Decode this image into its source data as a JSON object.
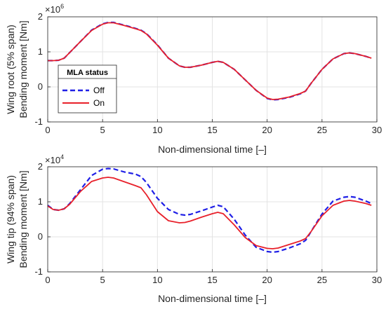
{
  "chart_data": [
    {
      "type": "line",
      "ylabel_lines": [
        "Wing root (5% span)",
        "Bending moment [Nm]"
      ],
      "xlabel": "Non-dimensional time [–]",
      "y_exponent_base": "×10",
      "y_exponent_power": "6",
      "xlim": [
        0,
        30
      ],
      "ylim": [
        -1,
        2
      ],
      "x_ticks": [
        0,
        5,
        10,
        15,
        20,
        25,
        30
      ],
      "y_ticks": [
        -1,
        0,
        1,
        2
      ],
      "grid": true,
      "legend": {
        "title": "MLA status",
        "placement": "middle-left"
      },
      "series": [
        {
          "name": "Off",
          "color": "#1f1fe6",
          "style": "dashed",
          "points": [
            [
              0,
              0.75
            ],
            [
              0.5,
              0.75
            ],
            [
              1,
              0.76
            ],
            [
              1.5,
              0.82
            ],
            [
              2,
              0.98
            ],
            [
              3,
              1.3
            ],
            [
              4,
              1.62
            ],
            [
              5,
              1.8
            ],
            [
              5.5,
              1.84
            ],
            [
              6,
              1.84
            ],
            [
              7,
              1.76
            ],
            [
              8,
              1.67
            ],
            [
              8.5,
              1.62
            ],
            [
              9,
              1.52
            ],
            [
              10,
              1.2
            ],
            [
              11,
              0.82
            ],
            [
              12,
              0.6
            ],
            [
              12.5,
              0.56
            ],
            [
              13,
              0.56
            ],
            [
              14,
              0.62
            ],
            [
              15,
              0.7
            ],
            [
              15.5,
              0.73
            ],
            [
              16,
              0.7
            ],
            [
              17,
              0.5
            ],
            [
              18,
              0.2
            ],
            [
              19,
              -0.1
            ],
            [
              20,
              -0.33
            ],
            [
              20.5,
              -0.37
            ],
            [
              21,
              -0.36
            ],
            [
              22,
              -0.3
            ],
            [
              23,
              -0.2
            ],
            [
              23.5,
              -0.12
            ],
            [
              24,
              0.1
            ],
            [
              25,
              0.5
            ],
            [
              26,
              0.8
            ],
            [
              27,
              0.95
            ],
            [
              27.5,
              0.97
            ],
            [
              28,
              0.95
            ],
            [
              29,
              0.87
            ],
            [
              29.5,
              0.82
            ]
          ]
        },
        {
          "name": "On",
          "color": "#e8202a",
          "style": "solid",
          "points": [
            [
              0,
              0.75
            ],
            [
              0.5,
              0.75
            ],
            [
              1,
              0.76
            ],
            [
              1.5,
              0.82
            ],
            [
              2,
              0.98
            ],
            [
              3,
              1.3
            ],
            [
              4,
              1.61
            ],
            [
              5,
              1.79
            ],
            [
              5.5,
              1.83
            ],
            [
              6,
              1.83
            ],
            [
              7,
              1.75
            ],
            [
              8,
              1.66
            ],
            [
              8.5,
              1.61
            ],
            [
              9,
              1.51
            ],
            [
              10,
              1.19
            ],
            [
              11,
              0.82
            ],
            [
              12,
              0.6
            ],
            [
              12.5,
              0.56
            ],
            [
              13,
              0.56
            ],
            [
              14,
              0.62
            ],
            [
              15,
              0.7
            ],
            [
              15.5,
              0.73
            ],
            [
              16,
              0.7
            ],
            [
              17,
              0.5
            ],
            [
              18,
              0.2
            ],
            [
              19,
              -0.1
            ],
            [
              20,
              -0.32
            ],
            [
              20.5,
              -0.36
            ],
            [
              21,
              -0.35
            ],
            [
              22,
              -0.29
            ],
            [
              23,
              -0.19
            ],
            [
              23.5,
              -0.12
            ],
            [
              24,
              0.1
            ],
            [
              25,
              0.5
            ],
            [
              26,
              0.8
            ],
            [
              27,
              0.95
            ],
            [
              27.5,
              0.97
            ],
            [
              28,
              0.95
            ],
            [
              29,
              0.87
            ],
            [
              29.5,
              0.82
            ]
          ]
        }
      ]
    },
    {
      "type": "line",
      "ylabel_lines": [
        "Wing tip (94% span)",
        "Bending moment [Nm]"
      ],
      "xlabel": "Non-dimensional time [–]",
      "y_exponent_base": "×10",
      "y_exponent_power": "4",
      "xlim": [
        0,
        30
      ],
      "ylim": [
        -1,
        2
      ],
      "x_ticks": [
        0,
        5,
        10,
        15,
        20,
        25,
        30
      ],
      "y_ticks": [
        -1,
        0,
        1,
        2
      ],
      "grid": true,
      "series": [
        {
          "name": "Off",
          "color": "#1f1fe6",
          "style": "dashed",
          "points": [
            [
              0,
              0.9
            ],
            [
              0.5,
              0.78
            ],
            [
              1,
              0.76
            ],
            [
              1.5,
              0.8
            ],
            [
              2,
              0.95
            ],
            [
              3,
              1.35
            ],
            [
              4,
              1.75
            ],
            [
              5,
              1.93
            ],
            [
              5.5,
              1.95
            ],
            [
              6,
              1.94
            ],
            [
              7,
              1.85
            ],
            [
              8,
              1.79
            ],
            [
              8.5,
              1.72
            ],
            [
              9,
              1.55
            ],
            [
              10,
              1.1
            ],
            [
              11,
              0.78
            ],
            [
              12,
              0.64
            ],
            [
              12.5,
              0.62
            ],
            [
              13,
              0.64
            ],
            [
              14,
              0.74
            ],
            [
              15,
              0.85
            ],
            [
              15.5,
              0.9
            ],
            [
              16,
              0.86
            ],
            [
              17,
              0.5
            ],
            [
              18,
              0.05
            ],
            [
              19,
              -0.3
            ],
            [
              20,
              -0.42
            ],
            [
              20.5,
              -0.44
            ],
            [
              21,
              -0.42
            ],
            [
              22,
              -0.32
            ],
            [
              23,
              -0.2
            ],
            [
              23.5,
              -0.1
            ],
            [
              24,
              0.15
            ],
            [
              25,
              0.65
            ],
            [
              26,
              1.02
            ],
            [
              27,
              1.13
            ],
            [
              27.5,
              1.15
            ],
            [
              28,
              1.13
            ],
            [
              29,
              1.02
            ],
            [
              29.5,
              0.95
            ]
          ]
        },
        {
          "name": "On",
          "color": "#e8202a",
          "style": "solid",
          "points": [
            [
              0,
              0.88
            ],
            [
              0.5,
              0.78
            ],
            [
              1,
              0.76
            ],
            [
              1.5,
              0.8
            ],
            [
              2,
              0.93
            ],
            [
              3,
              1.3
            ],
            [
              4,
              1.58
            ],
            [
              5,
              1.68
            ],
            [
              5.5,
              1.7
            ],
            [
              6,
              1.68
            ],
            [
              7,
              1.57
            ],
            [
              8,
              1.46
            ],
            [
              8.5,
              1.4
            ],
            [
              9,
              1.2
            ],
            [
              10,
              0.72
            ],
            [
              11,
              0.46
            ],
            [
              12,
              0.4
            ],
            [
              12.5,
              0.41
            ],
            [
              13,
              0.45
            ],
            [
              14,
              0.56
            ],
            [
              15,
              0.66
            ],
            [
              15.5,
              0.7
            ],
            [
              16,
              0.66
            ],
            [
              17,
              0.34
            ],
            [
              18,
              -0.02
            ],
            [
              19,
              -0.25
            ],
            [
              20,
              -0.33
            ],
            [
              20.5,
              -0.34
            ],
            [
              21,
              -0.32
            ],
            [
              22,
              -0.22
            ],
            [
              23,
              -0.12
            ],
            [
              23.5,
              -0.05
            ],
            [
              24,
              0.15
            ],
            [
              25,
              0.6
            ],
            [
              26,
              0.9
            ],
            [
              27,
              1.02
            ],
            [
              27.5,
              1.04
            ],
            [
              28,
              1.02
            ],
            [
              29,
              0.95
            ],
            [
              29.5,
              0.9
            ]
          ]
        }
      ]
    }
  ]
}
